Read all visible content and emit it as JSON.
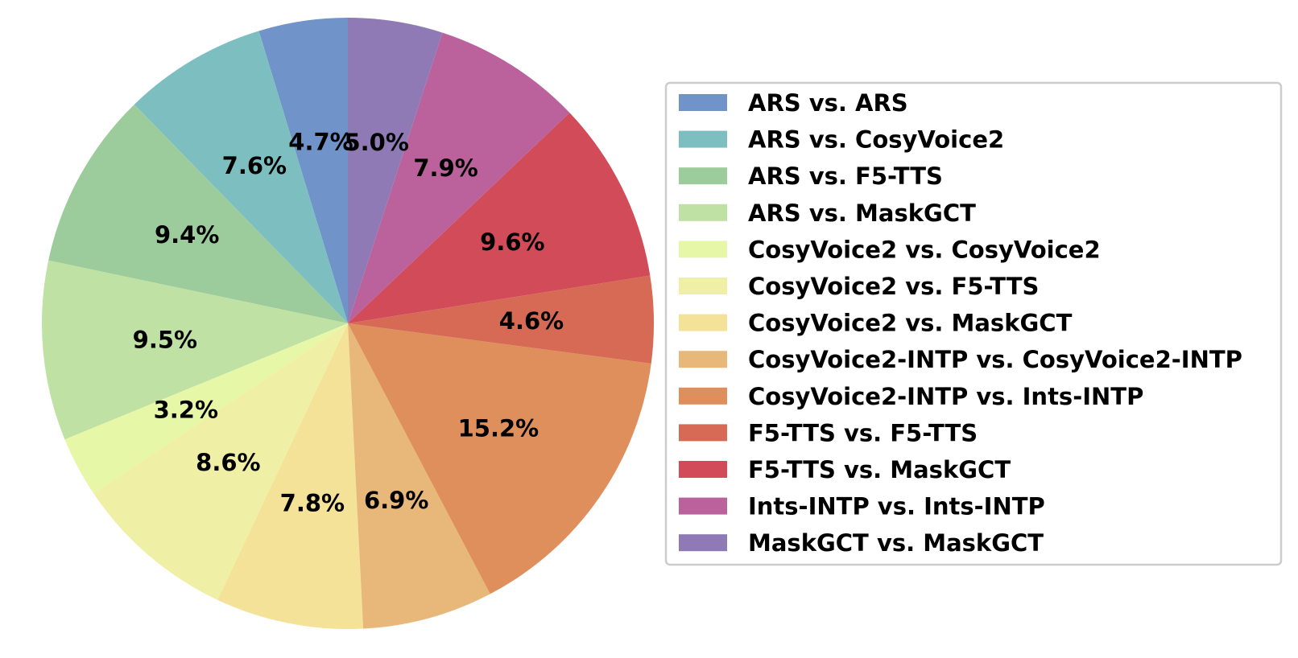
{
  "chart_data": {
    "type": "pie",
    "start_angle_deg": 90,
    "direction": "counterclockwise",
    "legend_position": "right",
    "slices": [
      {
        "name": "ARS vs. ARS",
        "value": 4.7,
        "label": "4.7%",
        "color": "#7094c9"
      },
      {
        "name": "ARS vs. CosyVoice2",
        "value": 7.6,
        "label": "7.6%",
        "color": "#7dbfc0"
      },
      {
        "name": "ARS vs. F5-TTS",
        "value": 9.4,
        "label": "9.4%",
        "color": "#9dcc9c"
      },
      {
        "name": "ARS vs. MaskGCT",
        "value": 9.5,
        "label": "9.5%",
        "color": "#bfe1a4"
      },
      {
        "name": "CosyVoice2 vs. CosyVoice2",
        "value": 3.2,
        "label": "3.2%",
        "color": "#e6f7a7"
      },
      {
        "name": "CosyVoice2 vs. F5-TTS",
        "value": 8.6,
        "label": "8.6%",
        "color": "#eff0a5"
      },
      {
        "name": "CosyVoice2 vs. MaskGCT",
        "value": 7.8,
        "label": "7.8%",
        "color": "#f4e299"
      },
      {
        "name": "CosyVoice2-INTP vs. CosyVoice2-INTP",
        "value": 6.9,
        "label": "6.9%",
        "color": "#e8b87b"
      },
      {
        "name": "CosyVoice2-INTP vs. Ints-INTP",
        "value": 15.2,
        "label": "15.2%",
        "color": "#de8f5c"
      },
      {
        "name": "F5-TTS vs. F5-TTS",
        "value": 4.6,
        "label": "4.6%",
        "color": "#d76a55"
      },
      {
        "name": "F5-TTS vs. MaskGCT",
        "value": 9.6,
        "label": "9.6%",
        "color": "#d14c58"
      },
      {
        "name": "Ints-INTP vs. Ints-INTP",
        "value": 7.9,
        "label": "7.9%",
        "color": "#bb619c"
      },
      {
        "name": "MaskGCT vs. MaskGCT",
        "value": 5.0,
        "label": "5.0%",
        "color": "#8f7ab5"
      }
    ]
  }
}
